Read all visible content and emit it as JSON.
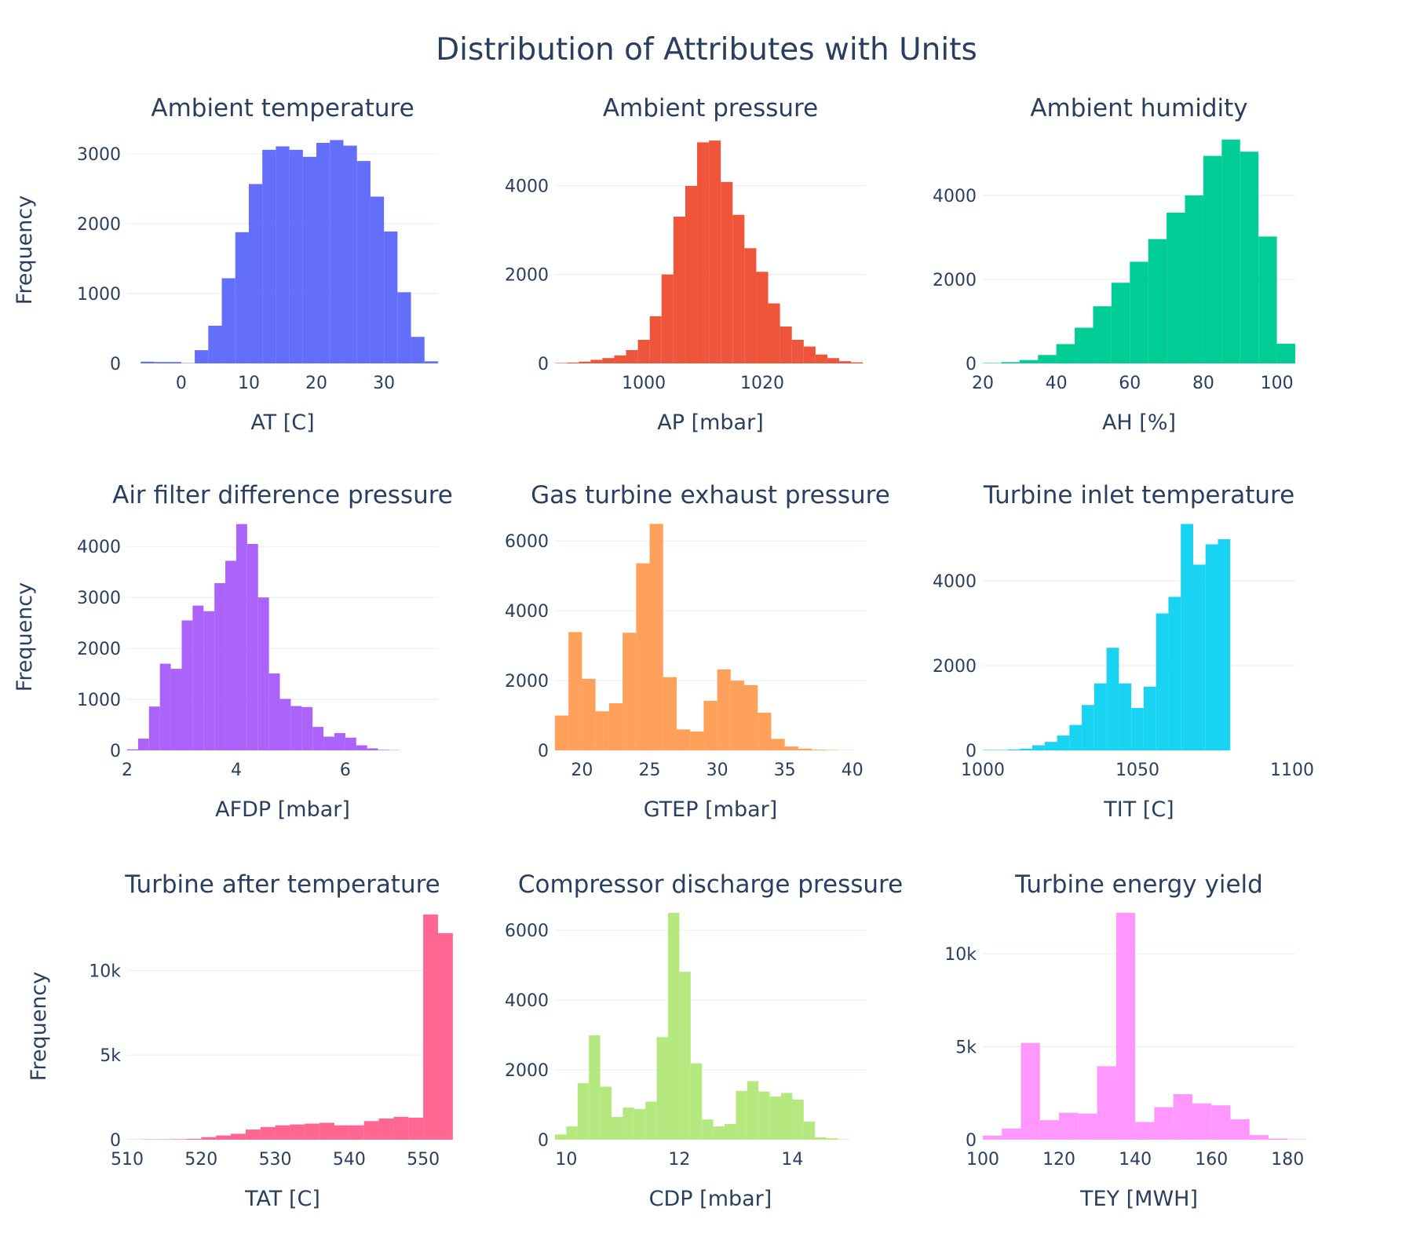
{
  "figure": {
    "title": "Distribution of Attributes with Units",
    "y_axis_label": "Frequency",
    "background": "#ffffff",
    "grid_color": "#ebf0f8",
    "text_color": "#2a3f5f"
  },
  "chart_data": [
    {
      "type": "bar",
      "subtitle": "Ambient temperature",
      "xlabel": "AT [C]",
      "ylabel": "Frequency",
      "color": "#636efa",
      "xlim": [
        -8,
        38
      ],
      "ylim": [
        0,
        3250
      ],
      "xticks": [
        0,
        10,
        20,
        30
      ],
      "yticks": [
        0,
        1000,
        2000,
        3000
      ],
      "ytick_labels": [
        "0",
        "1000",
        "2000",
        "3000"
      ],
      "bin_start": -6,
      "bin_width": 2,
      "values": [
        25,
        20,
        20,
        5,
        190,
        540,
        1220,
        1880,
        2570,
        3060,
        3110,
        3060,
        2960,
        3160,
        3200,
        3120,
        2900,
        2390,
        1890,
        1020,
        380,
        30
      ]
    },
    {
      "type": "bar",
      "subtitle": "Ambient pressure",
      "xlabel": "AP [mbar]",
      "ylabel": "",
      "color": "#ef553b",
      "xlim": [
        985,
        1037.5
      ],
      "ylim": [
        0,
        5100
      ],
      "xticks": [
        1000,
        1020
      ],
      "yticks": [
        0,
        2000,
        4000
      ],
      "ytick_labels": [
        "0",
        "2000",
        "4000"
      ],
      "bin_start": 985,
      "bin_width": 2,
      "values": [
        10,
        20,
        40,
        80,
        120,
        180,
        300,
        530,
        1060,
        2000,
        3300,
        3990,
        4970,
        5010,
        4080,
        3340,
        2590,
        2060,
        1350,
        830,
        530,
        380,
        200,
        120,
        50,
        25
      ]
    },
    {
      "type": "bar",
      "subtitle": "Ambient humidity",
      "xlabel": "AH [%]",
      "ylabel": "",
      "color": "#00cc96",
      "xlim": [
        20,
        105
      ],
      "ylim": [
        0,
        5400
      ],
      "xticks": [
        20,
        40,
        60,
        80,
        100
      ],
      "yticks": [
        0,
        2000,
        4000
      ],
      "ytick_labels": [
        "0",
        "2000",
        "4000"
      ],
      "bin_start": 20,
      "bin_width": 5,
      "values": [
        10,
        30,
        80,
        200,
        460,
        850,
        1360,
        1920,
        2420,
        2960,
        3590,
        4000,
        4940,
        5330,
        5040,
        3020,
        470
      ]
    },
    {
      "type": "bar",
      "subtitle": "Air filter difference pressure",
      "xlabel": "AFDP [mbar]",
      "ylabel": "Frequency",
      "color": "#ab63fa",
      "xlim": [
        2,
        7.7
      ],
      "ylim": [
        0,
        4450
      ],
      "xticks": [
        2,
        4,
        6
      ],
      "yticks": [
        0,
        1000,
        2000,
        3000,
        4000
      ],
      "ytick_labels": [
        "0",
        "1000",
        "2000",
        "3000",
        "4000"
      ],
      "bin_start": 2,
      "bin_width": 0.2,
      "values": [
        20,
        230,
        860,
        1700,
        1600,
        2550,
        2840,
        2730,
        3280,
        3720,
        4440,
        4050,
        3000,
        1510,
        1010,
        870,
        850,
        460,
        270,
        340,
        250,
        100,
        40,
        10,
        5
      ]
    },
    {
      "type": "bar",
      "subtitle": "Gas turbine exhaust pressure",
      "xlabel": "GTEP [mbar]",
      "ylabel": "",
      "color": "#ffa15a",
      "xlim": [
        18,
        41
      ],
      "ylim": [
        0,
        6500
      ],
      "xticks": [
        20,
        25,
        30,
        35,
        40
      ],
      "yticks": [
        0,
        2000,
        4000,
        6000
      ],
      "ytick_labels": [
        "0",
        "2000",
        "4000",
        "6000"
      ],
      "bin_start": 18,
      "bin_width": 1,
      "values": [
        1000,
        3390,
        2050,
        1120,
        1350,
        3370,
        5360,
        6490,
        2100,
        600,
        540,
        1420,
        2320,
        2000,
        1870,
        1080,
        330,
        110,
        50,
        20,
        10,
        5
      ]
    },
    {
      "type": "bar",
      "subtitle": "Turbine inlet temperature",
      "xlabel": "TIT [C]",
      "ylabel": "",
      "color": "#19d3f3",
      "xlim": [
        1000,
        1101
      ],
      "ylim": [
        0,
        5350
      ],
      "xticks": [
        1000,
        1050,
        1100
      ],
      "yticks": [
        0,
        2000,
        4000
      ],
      "ytick_labels": [
        "0",
        "2000",
        "4000"
      ],
      "bin_start": 1000,
      "bin_width": 4,
      "values": [
        10,
        10,
        20,
        40,
        120,
        200,
        350,
        600,
        1070,
        1580,
        2420,
        1580,
        1000,
        1500,
        3230,
        3620,
        5340,
        4380,
        4860,
        4980
      ]
    },
    {
      "type": "bar",
      "subtitle": "Turbine after temperature",
      "xlabel": "TAT [C]",
      "ylabel": "Frequency",
      "color": "#ff6692",
      "xlim": [
        510,
        552
      ],
      "ylim": [
        0,
        13400
      ],
      "xticks": [
        510,
        520,
        530,
        540,
        550
      ],
      "yticks": [
        0,
        5000,
        10000
      ],
      "ytick_labels": [
        "0",
        "5k",
        "10k"
      ],
      "bin_start": 510,
      "bin_width": 2,
      "values": [
        10,
        20,
        20,
        30,
        50,
        150,
        250,
        350,
        600,
        750,
        850,
        900,
        950,
        1000,
        850,
        850,
        1100,
        1250,
        1350,
        1300,
        13300,
        12200
      ]
    },
    {
      "type": "bar",
      "subtitle": "Compressor discharge pressure",
      "xlabel": "CDP [mbar]",
      "ylabel": "",
      "color": "#b6e880",
      "xlim": [
        9.8,
        15.3
      ],
      "ylim": [
        0,
        6500
      ],
      "xticks": [
        10,
        12,
        14
      ],
      "yticks": [
        0,
        2000,
        4000,
        6000
      ],
      "ytick_labels": [
        "0",
        "2000",
        "4000",
        "6000"
      ],
      "bin_start": 9.8,
      "bin_width": 0.2,
      "values": [
        150,
        380,
        1620,
        2990,
        1520,
        650,
        920,
        880,
        1090,
        2940,
        6500,
        4810,
        2190,
        580,
        380,
        450,
        1400,
        1680,
        1380,
        1240,
        1340,
        1150,
        520,
        70,
        40,
        10
      ]
    },
    {
      "type": "bar",
      "subtitle": "Turbine energy yield",
      "xlabel": "TEY [MWH]",
      "ylabel": "",
      "color": "#ff97ff",
      "xlim": [
        100,
        182
      ],
      "ylim": [
        0,
        12200
      ],
      "xticks": [
        100,
        120,
        140,
        160,
        180
      ],
      "yticks": [
        0,
        5000,
        10000
      ],
      "ytick_labels": [
        "0",
        "5k",
        "10k"
      ],
      "bin_start": 100,
      "bin_width": 5,
      "values": [
        220,
        600,
        5200,
        1050,
        1450,
        1400,
        3950,
        12200,
        950,
        1750,
        2450,
        1950,
        1850,
        1100,
        250,
        60,
        20
      ]
    }
  ]
}
